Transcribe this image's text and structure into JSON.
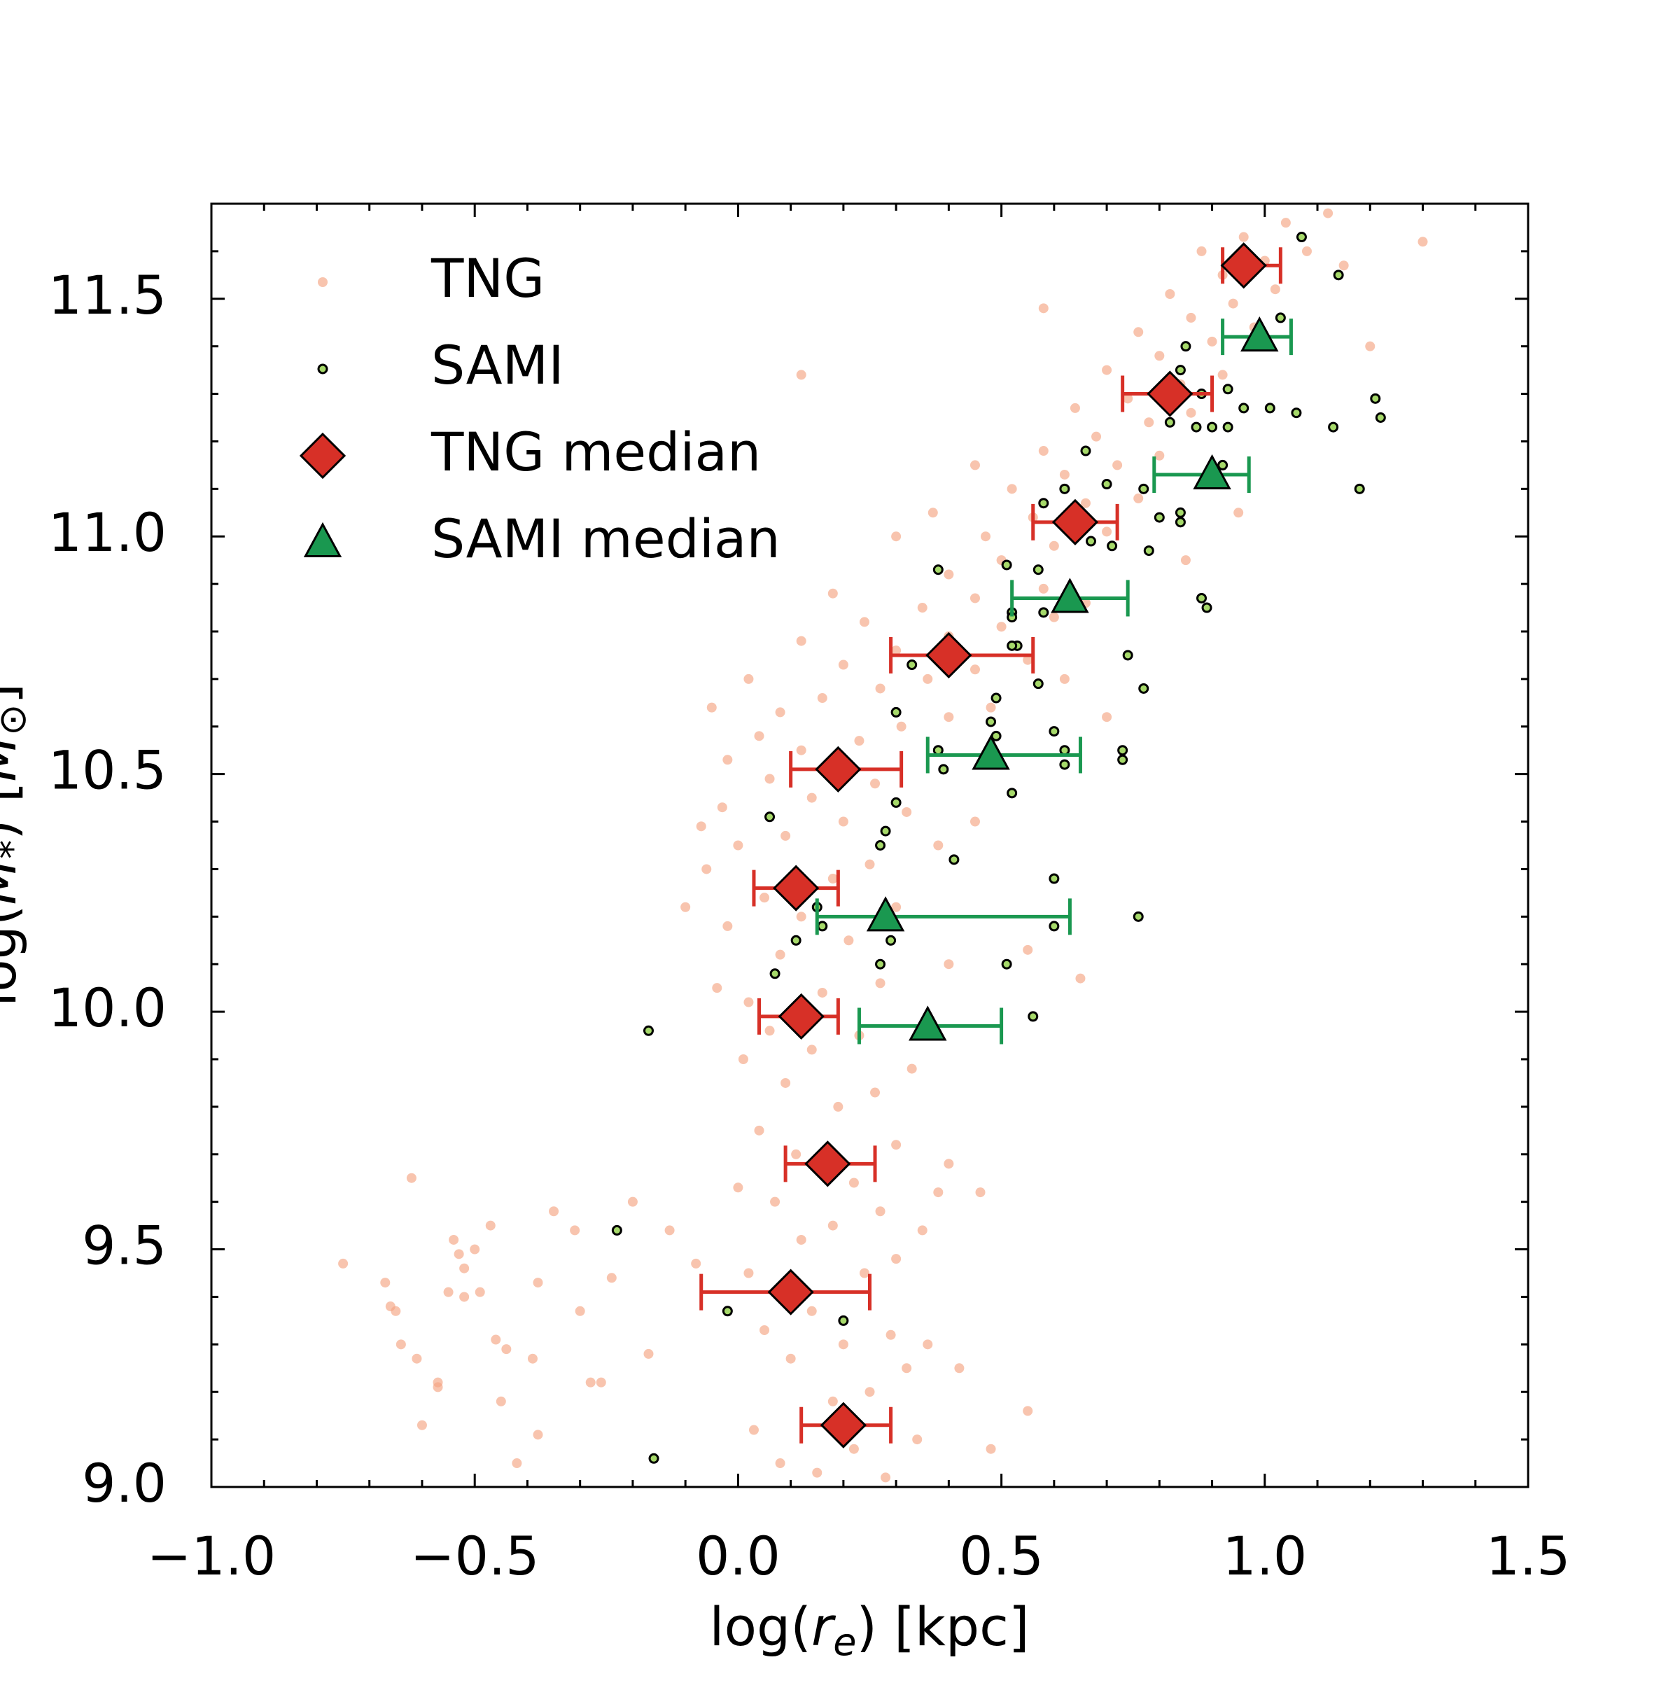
{
  "chart_data": {
    "type": "scatter",
    "xlabel": [
      "log(",
      "r",
      "e",
      ") [kpc]"
    ],
    "ylabel": [
      "log(",
      "M",
      "*",
      ") [",
      "M",
      "⊙",
      "]"
    ],
    "xlim": [
      -1.0,
      1.5
    ],
    "ylim": [
      9.0,
      11.7
    ],
    "xticks": [
      {
        "value": -1.0,
        "label": "−1.0"
      },
      {
        "value": -0.5,
        "label": "−0.5"
      },
      {
        "value": 0,
        "label": "0.0"
      },
      0.5,
      {
        "value": 1.0,
        "label": "1.0"
      },
      1.5
    ],
    "yticks": [
      {
        "value": 9.0,
        "label": "9.0"
      },
      9.5,
      {
        "value": 10.0,
        "label": "10.0"
      },
      10.5,
      {
        "value": 11.0,
        "label": "11.0"
      },
      11.5
    ],
    "legend": "upper left",
    "series": [
      {
        "name": "TNG",
        "color": "#f4a582",
        "marker": "circle",
        "x": [
          -0.75,
          -0.67,
          -0.66,
          -0.65,
          -0.64,
          -0.61,
          -0.6,
          -0.57,
          -0.54,
          -0.53,
          -0.52,
          -0.5,
          -0.49,
          -0.47,
          -0.46,
          -0.45,
          -0.42,
          -0.39,
          -0.38,
          -0.35,
          -0.31,
          -0.3,
          -0.26,
          -0.24,
          -0.2,
          -0.17,
          -0.13,
          -0.08,
          -0.62,
          -0.38,
          -0.28,
          -0.52,
          -0.55,
          -0.44,
          -0.57,
          0.08,
          0.15,
          0.22,
          0.28,
          0.03,
          0.18,
          0.25,
          0.32,
          0.1,
          0.05,
          0.2,
          0.29,
          0.14,
          0.24,
          0.02,
          0.3,
          0.12,
          0.18,
          0.07,
          0.27,
          0.22,
          0.0,
          0.11,
          0.3,
          0.04,
          0.19,
          0.26,
          0.09,
          0.33,
          0.01,
          0.14,
          0.23,
          0.06,
          0.38,
          0.4,
          0.35,
          0.46,
          0.36,
          0.42,
          0.48,
          0.34,
          0.55,
          -0.04,
          0.02,
          0.16,
          0.27,
          0.08,
          0.21,
          -0.02,
          0.12,
          0.3,
          0.05,
          0.18,
          0.25,
          -0.06,
          0.0,
          0.09,
          0.2,
          0.32,
          -0.03,
          0.14,
          0.26,
          0.06,
          0.38,
          0.45,
          0.55,
          0.65,
          0.4,
          -0.1,
          -0.07,
          -0.02,
          0.04,
          0.12,
          0.23,
          0.31,
          0.4,
          0.48,
          0.08,
          0.16,
          0.27,
          0.36,
          0.45,
          0.55,
          0.02,
          0.2,
          0.3,
          0.4,
          0.5,
          0.6,
          0.12,
          0.24,
          0.35,
          0.45,
          0.58,
          0.66,
          -0.05,
          0.7,
          0.62,
          0.18,
          0.4,
          0.5,
          0.6,
          0.7,
          0.47,
          0.56,
          0.66,
          0.76,
          0.52,
          0.62,
          0.72,
          0.8,
          0.58,
          0.68,
          0.78,
          0.86,
          0.64,
          0.74,
          0.84,
          0.92,
          0.3,
          0.37,
          0.85,
          0.95,
          0.45,
          0.7,
          0.8,
          0.9,
          0.98,
          0.76,
          0.86,
          0.94,
          1.02,
          0.82,
          0.92,
          1.0,
          1.08,
          0.88,
          0.96,
          1.04,
          1.12,
          0.58,
          1.3,
          1.2,
          1.15,
          0.12
        ],
        "y": [
          9.47,
          9.43,
          9.38,
          9.37,
          9.3,
          9.27,
          9.13,
          9.22,
          9.52,
          9.49,
          9.46,
          9.5,
          9.41,
          9.55,
          9.31,
          9.18,
          9.05,
          9.27,
          9.11,
          9.58,
          9.54,
          9.37,
          9.22,
          9.44,
          9.6,
          9.28,
          9.54,
          9.47,
          9.65,
          9.43,
          9.22,
          9.4,
          9.41,
          9.29,
          9.21,
          9.05,
          9.03,
          9.08,
          9.02,
          9.12,
          9.18,
          9.2,
          9.25,
          9.27,
          9.33,
          9.3,
          9.32,
          9.37,
          9.45,
          9.45,
          9.48,
          9.52,
          9.55,
          9.6,
          9.58,
          9.64,
          9.63,
          9.7,
          9.72,
          9.75,
          9.8,
          9.83,
          9.85,
          9.88,
          9.9,
          9.92,
          9.95,
          9.96,
          9.62,
          9.68,
          9.54,
          9.62,
          9.3,
          9.25,
          9.08,
          9.1,
          9.16,
          10.05,
          10.02,
          10.04,
          10.06,
          10.12,
          10.15,
          10.18,
          10.2,
          10.22,
          10.24,
          10.28,
          10.31,
          10.3,
          10.35,
          10.37,
          10.4,
          10.42,
          10.43,
          10.45,
          10.48,
          10.49,
          10.35,
          10.4,
          10.13,
          10.07,
          10.1,
          10.22,
          10.39,
          10.53,
          10.58,
          10.55,
          10.57,
          10.6,
          10.62,
          10.64,
          10.63,
          10.66,
          10.68,
          10.7,
          10.72,
          10.74,
          10.7,
          10.73,
          10.76,
          10.79,
          10.81,
          10.83,
          10.78,
          10.82,
          10.85,
          10.87,
          10.89,
          10.86,
          10.64,
          10.62,
          10.7,
          10.88,
          10.92,
          10.95,
          10.98,
          11.01,
          11.0,
          11.04,
          11.07,
          11.08,
          11.1,
          11.13,
          11.15,
          11.17,
          11.18,
          11.21,
          11.24,
          11.26,
          11.27,
          11.29,
          11.32,
          11.34,
          11.0,
          11.05,
          10.95,
          11.05,
          11.15,
          11.35,
          11.38,
          11.41,
          11.44,
          11.43,
          11.46,
          11.49,
          11.52,
          11.51,
          11.55,
          11.58,
          11.6,
          11.6,
          11.63,
          11.66,
          11.68,
          11.48,
          11.62,
          11.4,
          11.57,
          11.34
        ]
      },
      {
        "name": "SAMI",
        "color": "#a6d96a",
        "edgecolor": "#000000",
        "marker": "circle",
        "x": [
          1.07,
          1.14,
          1.03,
          0.85,
          0.84,
          0.93,
          0.88,
          0.96,
          1.01,
          1.06,
          1.21,
          1.22,
          1.13,
          0.87,
          0.9,
          0.93,
          0.66,
          0.92,
          0.82,
          0.77,
          0.7,
          1.18,
          0.84,
          0.8,
          0.67,
          0.71,
          0.78,
          0.84,
          0.58,
          0.62,
          0.38,
          0.51,
          0.57,
          0.52,
          0.52,
          0.58,
          0.88,
          0.89,
          0.53,
          0.52,
          0.74,
          0.33,
          0.57,
          0.77,
          0.3,
          0.49,
          0.48,
          0.49,
          0.6,
          0.38,
          0.62,
          0.73,
          0.73,
          0.39,
          0.62,
          0.52,
          0.3,
          0.06,
          0.28,
          0.27,
          0.41,
          0.6,
          0.12,
          0.13,
          0.15,
          0.16,
          0.6,
          0.76,
          0.11,
          0.29,
          0.27,
          0.51,
          0.07,
          0.56,
          -0.17,
          -0.23,
          -0.02,
          0.2,
          -0.16
        ],
        "y": [
          11.63,
          11.55,
          11.46,
          11.4,
          11.35,
          11.31,
          11.3,
          11.27,
          11.27,
          11.26,
          11.29,
          11.25,
          11.23,
          11.23,
          11.23,
          11.23,
          11.18,
          11.15,
          11.24,
          11.1,
          11.11,
          11.1,
          11.05,
          11.04,
          10.99,
          10.98,
          10.97,
          11.03,
          11.07,
          11.1,
          10.93,
          10.94,
          10.93,
          10.84,
          10.83,
          10.84,
          10.87,
          10.85,
          10.77,
          10.77,
          10.75,
          10.73,
          10.69,
          10.68,
          10.63,
          10.66,
          10.61,
          10.58,
          10.59,
          10.55,
          10.55,
          10.55,
          10.53,
          10.51,
          10.52,
          10.46,
          10.44,
          10.41,
          10.38,
          10.35,
          10.32,
          10.28,
          10.28,
          10.25,
          10.22,
          10.18,
          10.18,
          10.2,
          10.15,
          10.15,
          10.1,
          10.1,
          10.08,
          9.99,
          9.96,
          9.54,
          9.37,
          9.35,
          9.06
        ]
      },
      {
        "name": "TNG median",
        "color": "#d73027",
        "marker": "diamond",
        "x": [
          0.96,
          0.82,
          0.64,
          0.4,
          0.19,
          0.11,
          0.12,
          0.17,
          0.1,
          0.2
        ],
        "y": [
          11.57,
          11.3,
          11.03,
          10.75,
          10.51,
          10.26,
          9.99,
          9.68,
          9.41,
          9.13
        ],
        "x_low": [
          0.92,
          0.73,
          0.56,
          0.29,
          0.1,
          0.03,
          0.04,
          0.09,
          -0.07,
          0.12
        ],
        "x_high": [
          1.03,
          0.9,
          0.72,
          0.56,
          0.31,
          0.19,
          0.19,
          0.26,
          0.25,
          0.29
        ]
      },
      {
        "name": "SAMI median",
        "color": "#1a9850",
        "marker": "triangle",
        "x": [
          0.99,
          0.9,
          0.63,
          0.48,
          0.28,
          0.36
        ],
        "y": [
          11.42,
          11.13,
          10.87,
          10.54,
          10.2,
          9.97
        ],
        "x_low": [
          0.92,
          0.79,
          0.52,
          0.36,
          0.15,
          0.23
        ],
        "x_high": [
          1.05,
          0.97,
          0.74,
          0.65,
          0.63,
          0.5
        ]
      }
    ]
  }
}
